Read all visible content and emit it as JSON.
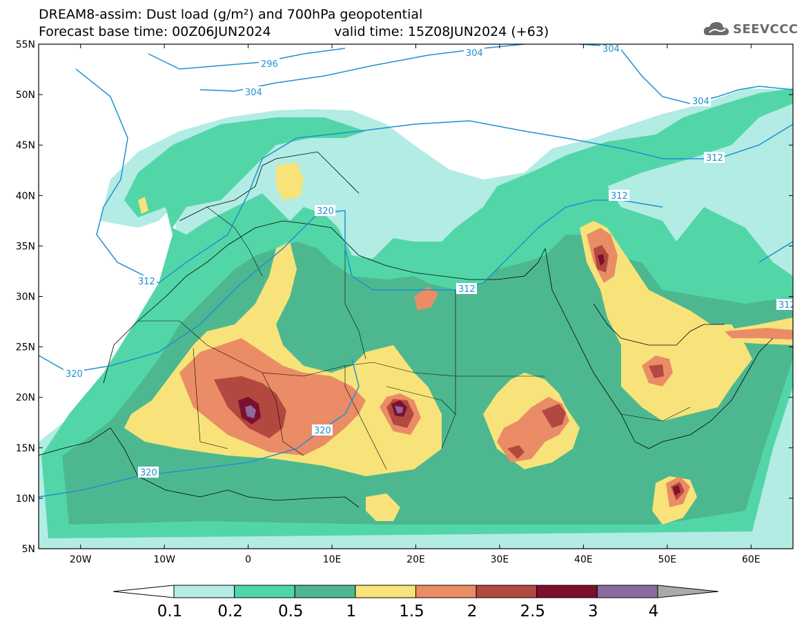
{
  "title": {
    "line1": "DREAM8-assim: Dust load (g/m²) and 700hPa geopotential",
    "line2": "Forecast base time: 00Z06JUN2024",
    "valid": "valid time: 15Z08JUN2024 (+63)"
  },
  "logo": {
    "text": "SEEVCCC",
    "icon": "cloud-logo-icon"
  },
  "axes": {
    "lat_labels": [
      "55N",
      "50N",
      "45N",
      "40N",
      "35N",
      "30N",
      "25N",
      "20N",
      "15N",
      "10N",
      "5N"
    ],
    "lon_labels": [
      "20W",
      "10W",
      "0",
      "10E",
      "20E",
      "30E",
      "40E",
      "50E",
      "60E"
    ]
  },
  "map": {
    "extent": {
      "lon_min": -25,
      "lon_max": 65,
      "lat_min": 5,
      "lat_max": 55
    },
    "contour_labels": [
      "296",
      "304",
      "304",
      "304",
      "304",
      "312",
      "312",
      "312",
      "312",
      "312",
      "320",
      "320",
      "320",
      "320"
    ]
  },
  "colorbar": {
    "levels": [
      "0.1",
      "0.2",
      "0.5",
      "1",
      "1.5",
      "2",
      "2.5",
      "3",
      "4"
    ],
    "colors": [
      "#b3ece4",
      "#52d6a8",
      "#4db88f",
      "#f7e37a",
      "#ea8c65",
      "#b2483f",
      "#7d0f2e",
      "#8b6aa0",
      "#aaaaaa"
    ],
    "under_color": "#ffffff"
  }
}
